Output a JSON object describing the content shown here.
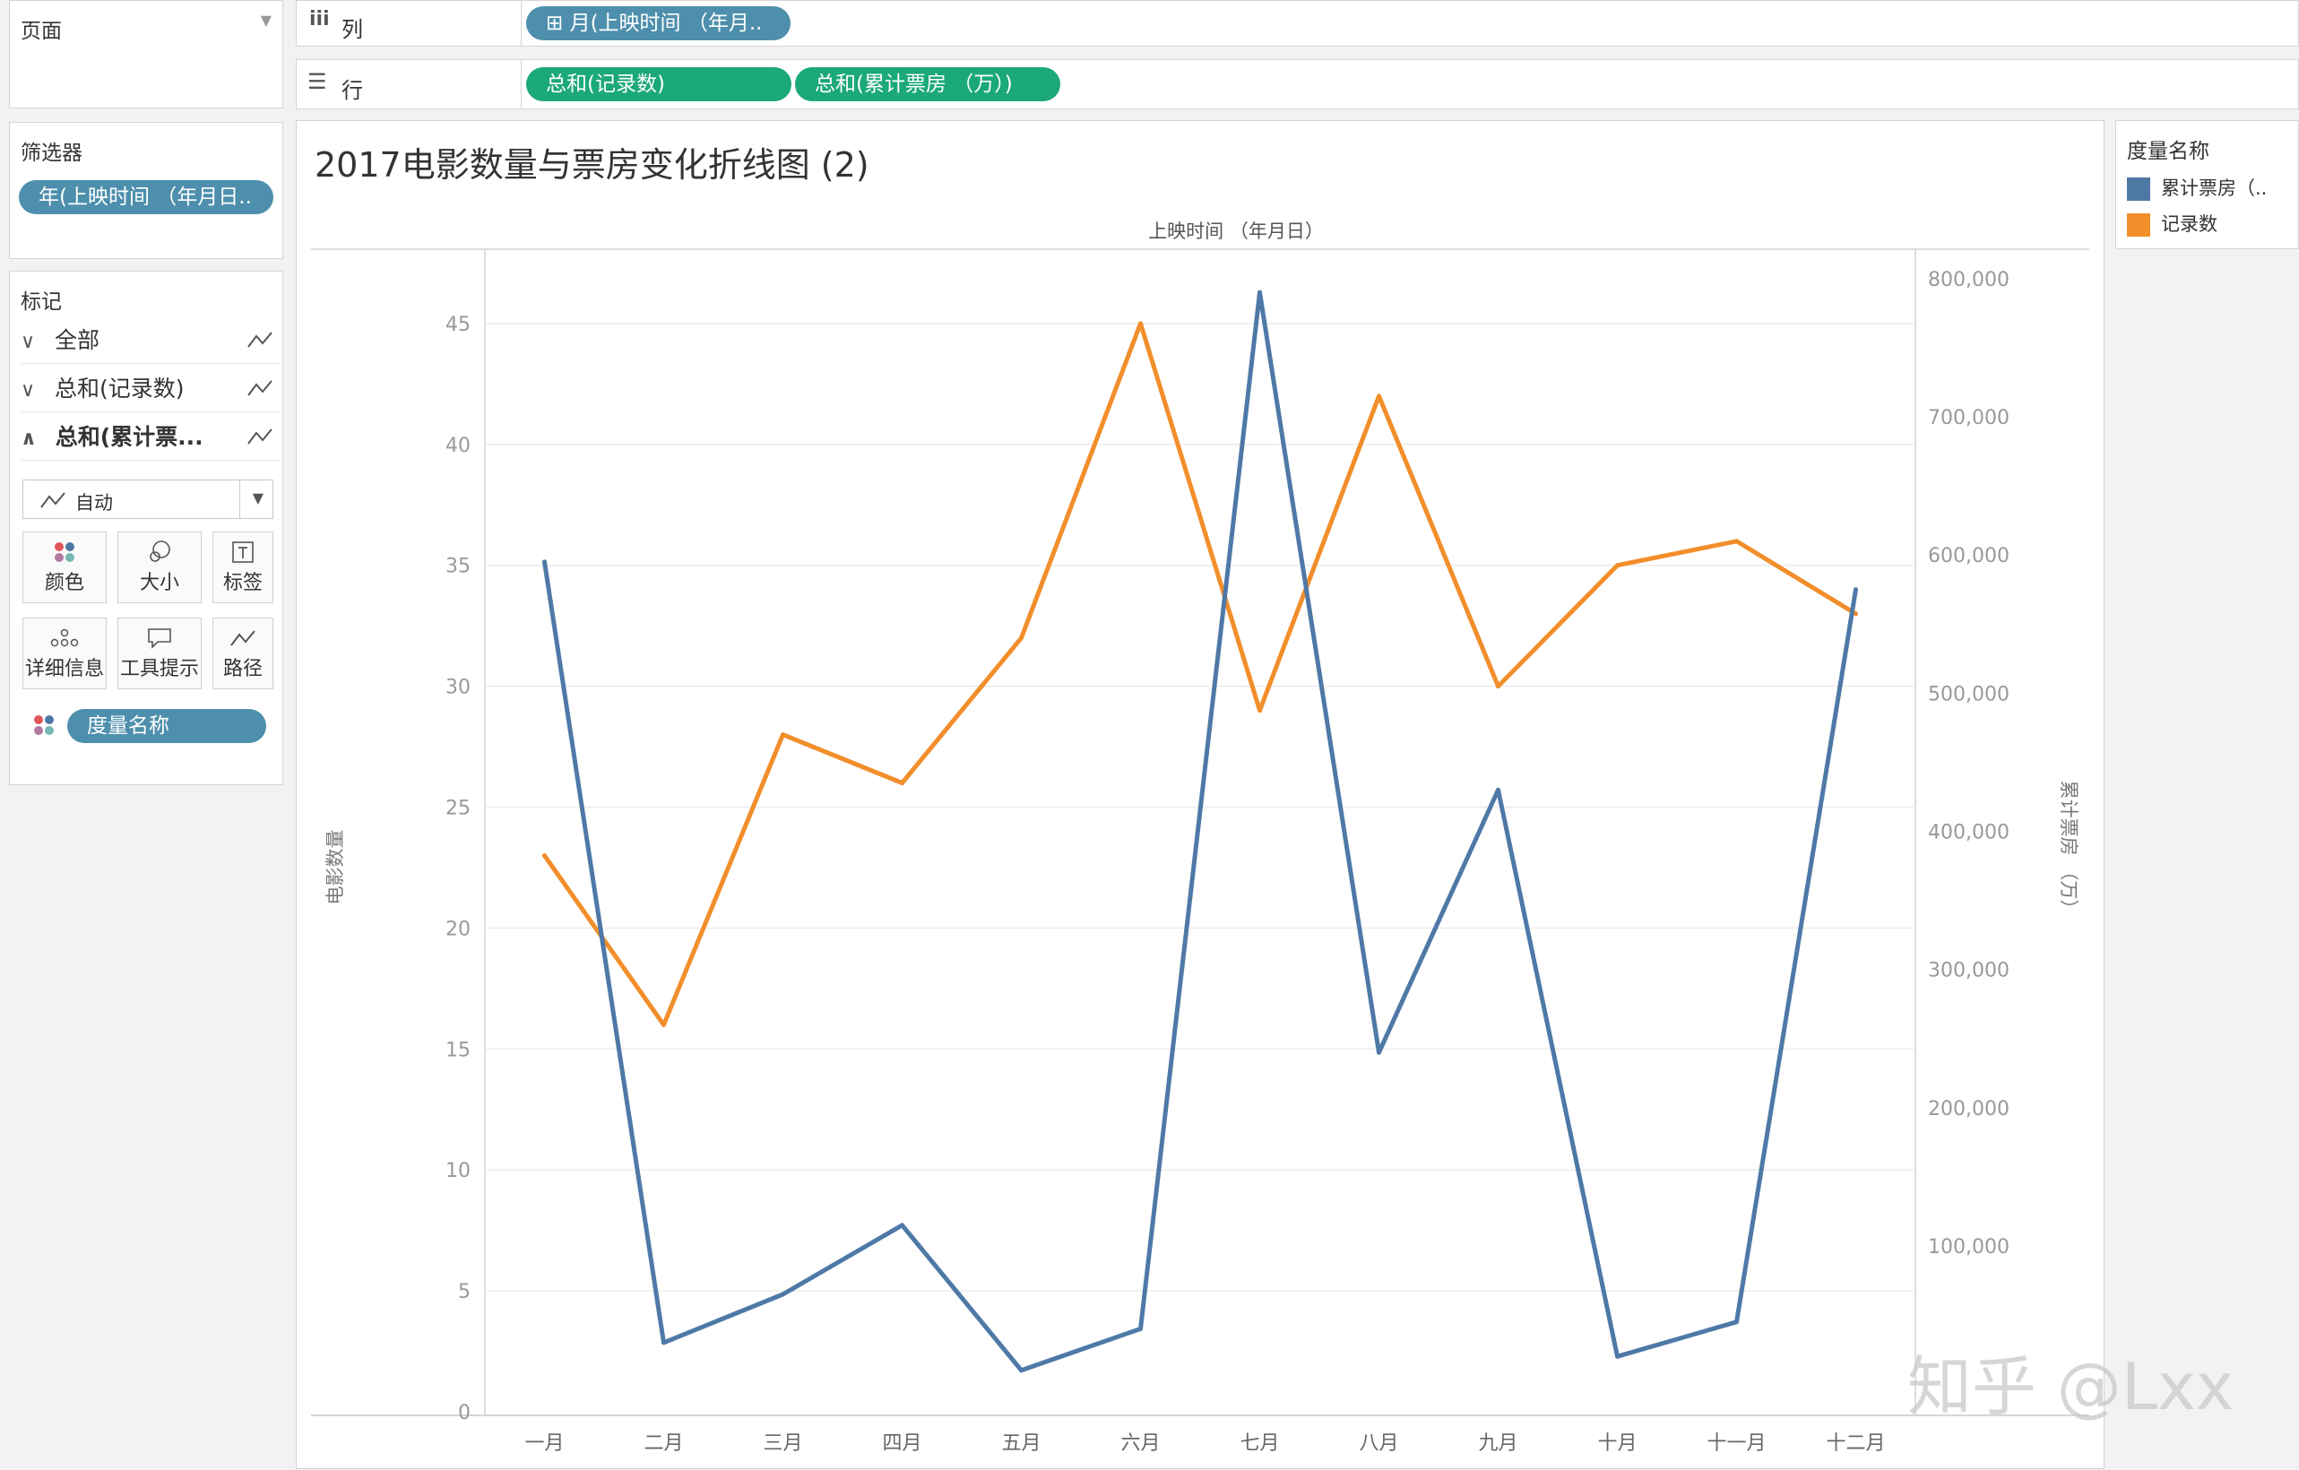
{
  "pages_panel": {
    "title": "页面"
  },
  "columns_shelf": {
    "label": "列",
    "pill": "⊞ 月(上映时间 （年月.."
  },
  "rows_shelf": {
    "label": "行",
    "pills": [
      "总和(记录数)",
      "总和(累计票房 （万）)"
    ]
  },
  "filters_panel": {
    "title": "筛选器",
    "pill": "年(上映时间 （年月日.."
  },
  "marks_panel": {
    "title": "标记",
    "rows": [
      {
        "label": "全部",
        "chevron": "∨"
      },
      {
        "label": "总和(记录数)",
        "chevron": "∨"
      },
      {
        "label": "总和(累计票...",
        "chevron": "∧"
      }
    ],
    "mark_type": "自动",
    "buttons": [
      "颜色",
      "大小",
      "标签",
      "详细信息",
      "工具提示",
      "路径"
    ],
    "field_pill": "度量名称"
  },
  "legend": {
    "title": "度量名称",
    "items": [
      {
        "label": "累计票房（..",
        "color": "#4e79a7"
      },
      {
        "label": "记录数",
        "color": "#f28e2b"
      }
    ]
  },
  "watermark": "知乎 @Lxx",
  "chart_data": {
    "type": "line",
    "title": "2017电影数量与票房变化折线图 (2)",
    "xlabel": "上映时间 （年月日）",
    "ylabel_left": "电影数量",
    "ylabel_right": "累计票房 （万）",
    "categories": [
      "一月",
      "二月",
      "三月",
      "四月",
      "五月",
      "六月",
      "七月",
      "八月",
      "九月",
      "十月",
      "十一月",
      "十二月"
    ],
    "left_axis": {
      "ticks": [
        "0",
        "5",
        "10",
        "15",
        "20",
        "25",
        "30",
        "35",
        "40",
        "45"
      ],
      "range": [
        0,
        48
      ]
    },
    "right_axis": {
      "ticks": [
        "100,000",
        "200,000",
        "300,000",
        "400,000",
        "500,000",
        "600,000",
        "700,000",
        "800,000"
      ],
      "range": [
        -20000,
        820000
      ]
    },
    "series": [
      {
        "name": "记录数",
        "axis": "left",
        "color": "#f28e2b",
        "values": [
          23,
          16,
          28,
          26,
          32,
          45,
          29,
          42,
          30,
          35,
          36,
          33
        ]
      },
      {
        "name": "累计票房（..",
        "axis": "right",
        "color": "#4e79a7",
        "values": [
          595000,
          30000,
          65000,
          115000,
          10000,
          40000,
          790000,
          240000,
          430000,
          20000,
          45000,
          575000
        ]
      }
    ]
  }
}
